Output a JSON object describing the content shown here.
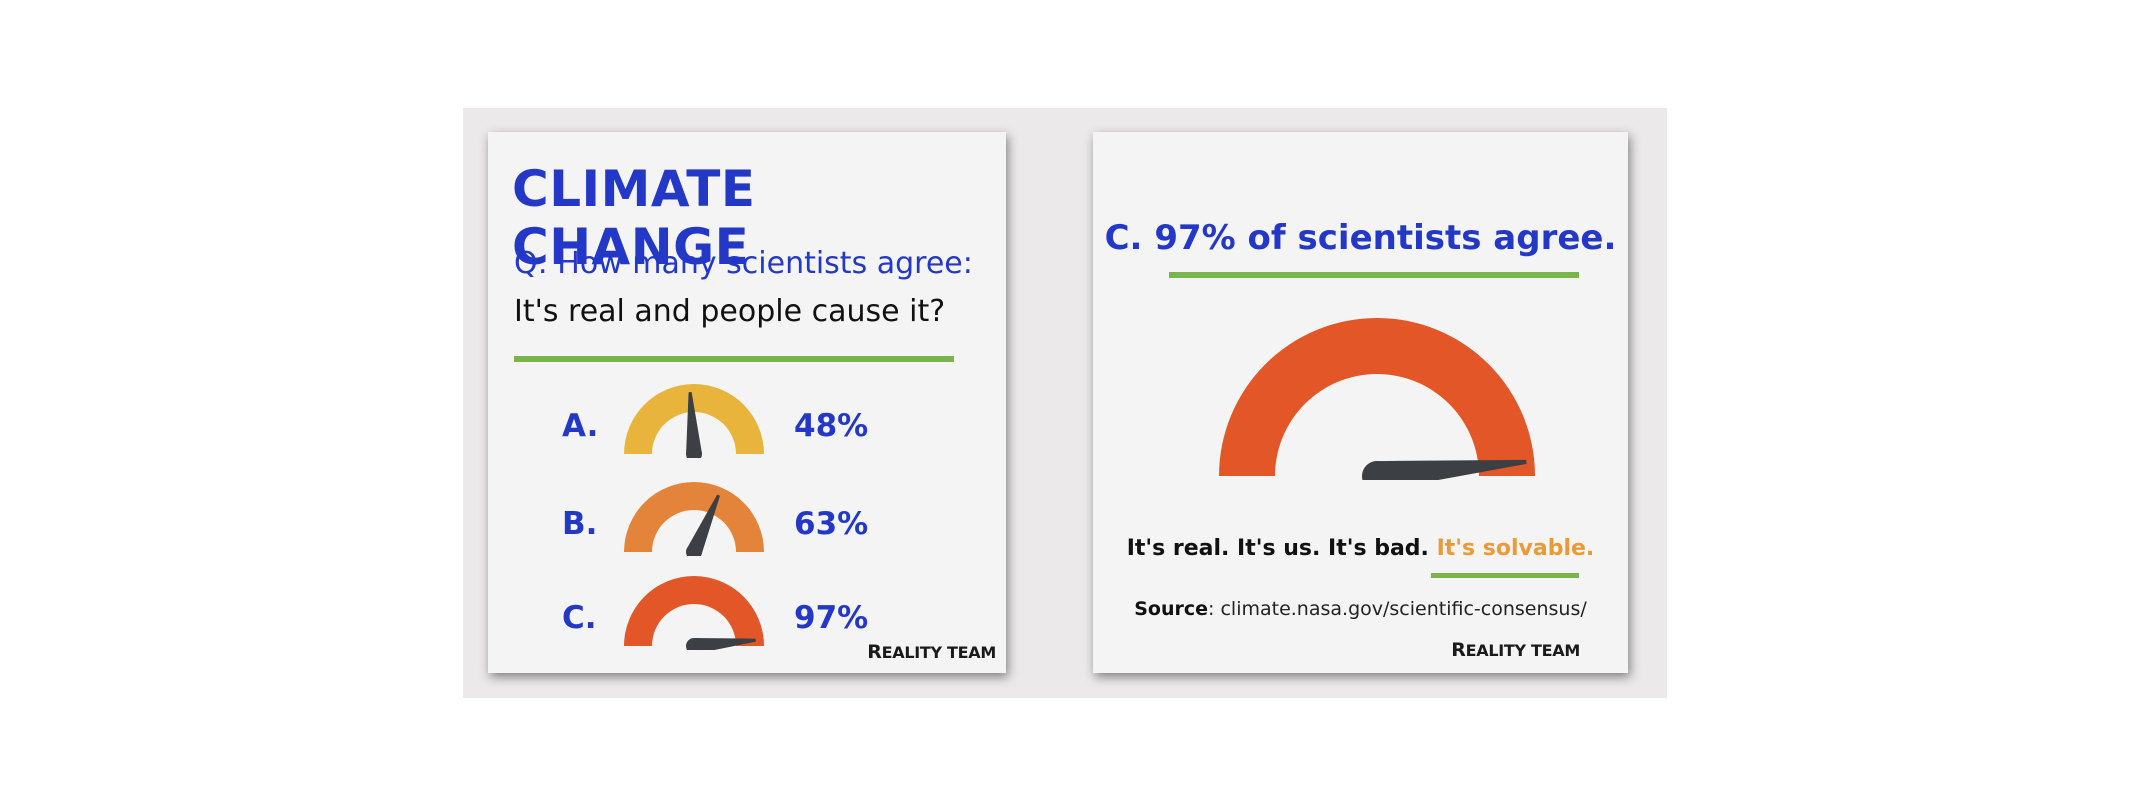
{
  "left_card": {
    "title": "CLIMATE CHANGE",
    "question": "Q: How many scientists agree:",
    "statement": "It's real and people cause it?",
    "options": [
      {
        "letter": "A.",
        "percent_label": "48%",
        "value": 48,
        "color": "#e9b43c"
      },
      {
        "letter": "B.",
        "percent_label": "63%",
        "value": 63,
        "color": "#e3843a"
      },
      {
        "letter": "C.",
        "percent_label": "97%",
        "value": 97,
        "color": "#e25628"
      }
    ],
    "brand_initial": "R",
    "brand_rest": "EALITY TEAM"
  },
  "right_card": {
    "answer": "C. 97% of scientists agree.",
    "gauge_value": 97,
    "gauge_color": "#e25628",
    "tagline_main": "It's real. It's us. It's bad.",
    "tagline_accent": "It's solvable.",
    "source_label": "Source",
    "source_text": ": climate.nasa.gov/scientific-consensus/",
    "brand_initial": "R",
    "brand_rest": "EALITY TEAM"
  },
  "colors": {
    "title_blue": "#2438c8",
    "rule_green": "#79b54a",
    "needle": "#3c3f44",
    "accent_orange": "#ea9a36",
    "card_bg": "#f3f4f3",
    "backdrop": "#ebe9ea"
  }
}
